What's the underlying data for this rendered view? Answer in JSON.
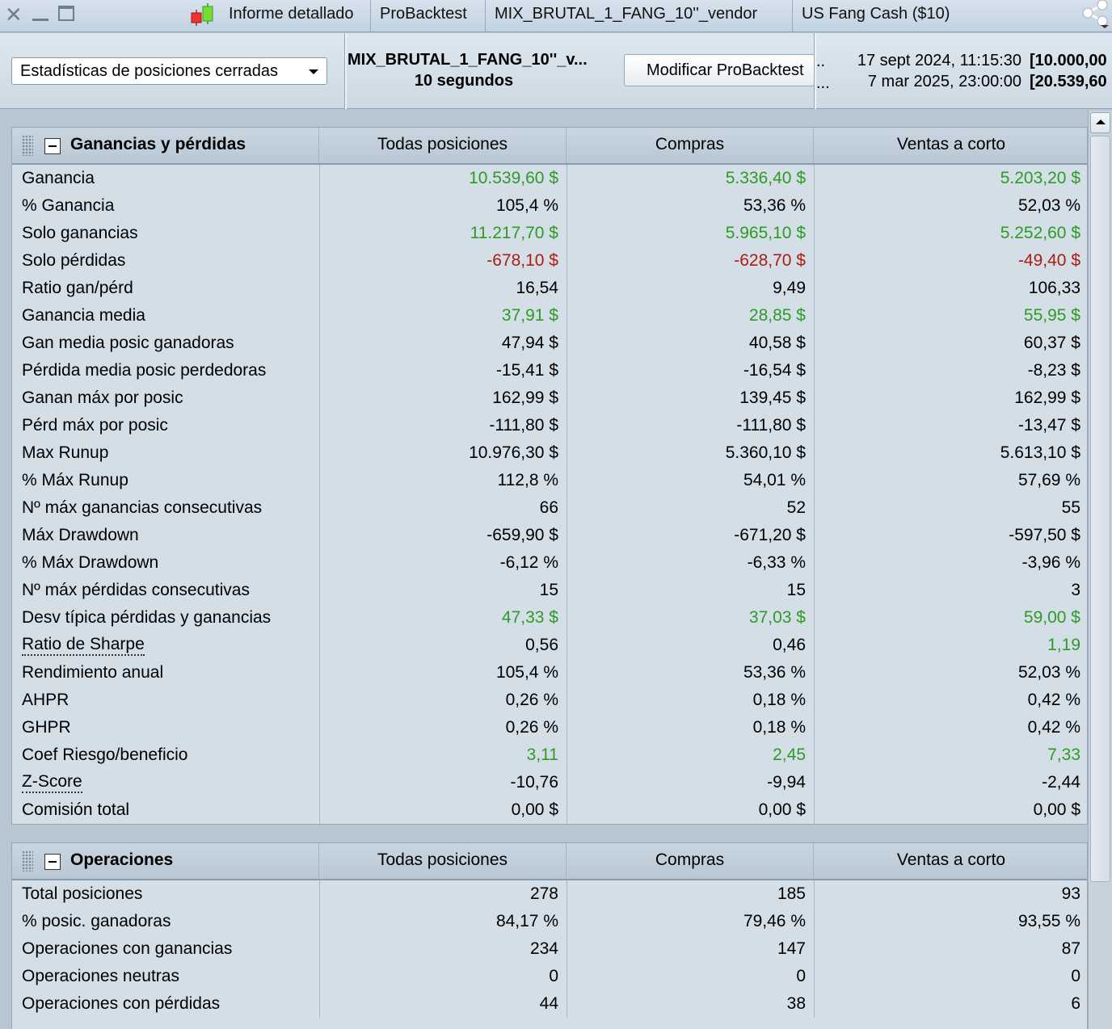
{
  "titlebar": {
    "tabs": [
      "Informe detallado",
      "ProBacktest",
      "MIX_BRUTAL_1_FANG_10''_vendor",
      "US Fang Cash ($10)"
    ]
  },
  "toolbar": {
    "stats_select": "Estadísticas de posiciones cerradas",
    "system_name": "MIX_BRUTAL_1_FANG_10''_v...",
    "timeframe": "10 segundos",
    "modify_button": "Modificar ProBacktest",
    "dots1": "..",
    "dots2": "...",
    "start_date": "17 sept 2024, 11:15:30",
    "start_value": "[10.000,00",
    "end_date": "7 mar 2025, 23:00:00",
    "end_value": "[20.539,60"
  },
  "colors": {
    "positive": "#2e9b24",
    "negative": "#b01b10"
  },
  "pnl": {
    "title": "Ganancias y pérdidas",
    "columns": [
      "Todas posiciones",
      "Compras",
      "Ventas a corto"
    ],
    "rows": [
      {
        "label": "Ganancia",
        "values": [
          "10.539,60 $",
          "5.336,40 $",
          "5.203,20 $"
        ],
        "color": "green"
      },
      {
        "label": "% Ganancia",
        "values": [
          "105,4 %",
          "53,36 %",
          "52,03 %"
        ]
      },
      {
        "label": "Solo ganancias",
        "values": [
          "11.217,70 $",
          "5.965,10 $",
          "5.252,60 $"
        ],
        "color": "green"
      },
      {
        "label": "Solo pérdidas",
        "values": [
          "-678,10 $",
          "-628,70 $",
          "-49,40 $"
        ],
        "color": "red"
      },
      {
        "label": "Ratio gan/pérd",
        "values": [
          "16,54",
          "9,49",
          "106,33"
        ]
      },
      {
        "label": "Ganancia media",
        "values": [
          "37,91 $",
          "28,85 $",
          "55,95 $"
        ],
        "color": "green"
      },
      {
        "label": "Gan media posic ganadoras",
        "values": [
          "47,94 $",
          "40,58 $",
          "60,37 $"
        ]
      },
      {
        "label": "Pérdida media posic perdedoras",
        "values": [
          "-15,41 $",
          "-16,54 $",
          "-8,23 $"
        ]
      },
      {
        "label": "Ganan máx por posic",
        "values": [
          "162,99 $",
          "139,45 $",
          "162,99 $"
        ]
      },
      {
        "label": "Pérd máx por posic",
        "values": [
          "-111,80 $",
          "-111,80 $",
          "-13,47 $"
        ]
      },
      {
        "label": "Max Runup",
        "values": [
          "10.976,30 $",
          "5.360,10 $",
          "5.613,10 $"
        ]
      },
      {
        "label": "% Máx Runup",
        "values": [
          "112,8 %",
          "54,01 %",
          "57,69 %"
        ]
      },
      {
        "label": "Nº máx ganancias consecutivas",
        "values": [
          "66",
          "52",
          "55"
        ]
      },
      {
        "label": "Máx Drawdown",
        "values": [
          "-659,90 $",
          "-671,20 $",
          "-597,50 $"
        ]
      },
      {
        "label": "% Máx Drawdown",
        "values": [
          "-6,12 %",
          "-6,33 %",
          "-3,96 %"
        ]
      },
      {
        "label": "Nº máx pérdidas consecutivas",
        "values": [
          "15",
          "15",
          "3"
        ]
      },
      {
        "label": "Desv típica pérdidas y ganancias",
        "values": [
          "47,33 $",
          "37,03 $",
          "59,00 $"
        ],
        "color": "green"
      },
      {
        "label": "Ratio de Sharpe",
        "values": [
          "0,56",
          "0,46",
          "1,19"
        ],
        "dotted": true,
        "greenCols": [
          2
        ]
      },
      {
        "label": "Rendimiento anual",
        "values": [
          "105,4 %",
          "53,36 %",
          "52,03 %"
        ]
      },
      {
        "label": "AHPR",
        "values": [
          "0,26 %",
          "0,18 %",
          "0,42 %"
        ]
      },
      {
        "label": "GHPR",
        "values": [
          "0,26 %",
          "0,18 %",
          "0,42 %"
        ]
      },
      {
        "label": "Coef Riesgo/beneficio",
        "values": [
          "3,11",
          "2,45",
          "7,33"
        ],
        "color": "green"
      },
      {
        "label": "Z-Score",
        "values": [
          "-10,76",
          "-9,94",
          "-2,44"
        ],
        "dotted": true
      },
      {
        "label": "Comisión total",
        "values": [
          "0,00 $",
          "0,00 $",
          "0,00 $"
        ]
      }
    ]
  },
  "ops": {
    "title": "Operaciones",
    "columns": [
      "Todas posiciones",
      "Compras",
      "Ventas a corto"
    ],
    "rows": [
      {
        "label": "Total posiciones",
        "values": [
          "278",
          "185",
          "93"
        ]
      },
      {
        "label": "% posic. ganadoras",
        "values": [
          "84,17 %",
          "79,46 %",
          "93,55 %"
        ]
      },
      {
        "label": "Operaciones con ganancias",
        "values": [
          "234",
          "147",
          "87"
        ]
      },
      {
        "label": "Operaciones neutras",
        "values": [
          "0",
          "0",
          "0"
        ]
      },
      {
        "label": "Operaciones con pérdidas",
        "values": [
          "44",
          "38",
          "6"
        ]
      }
    ]
  }
}
